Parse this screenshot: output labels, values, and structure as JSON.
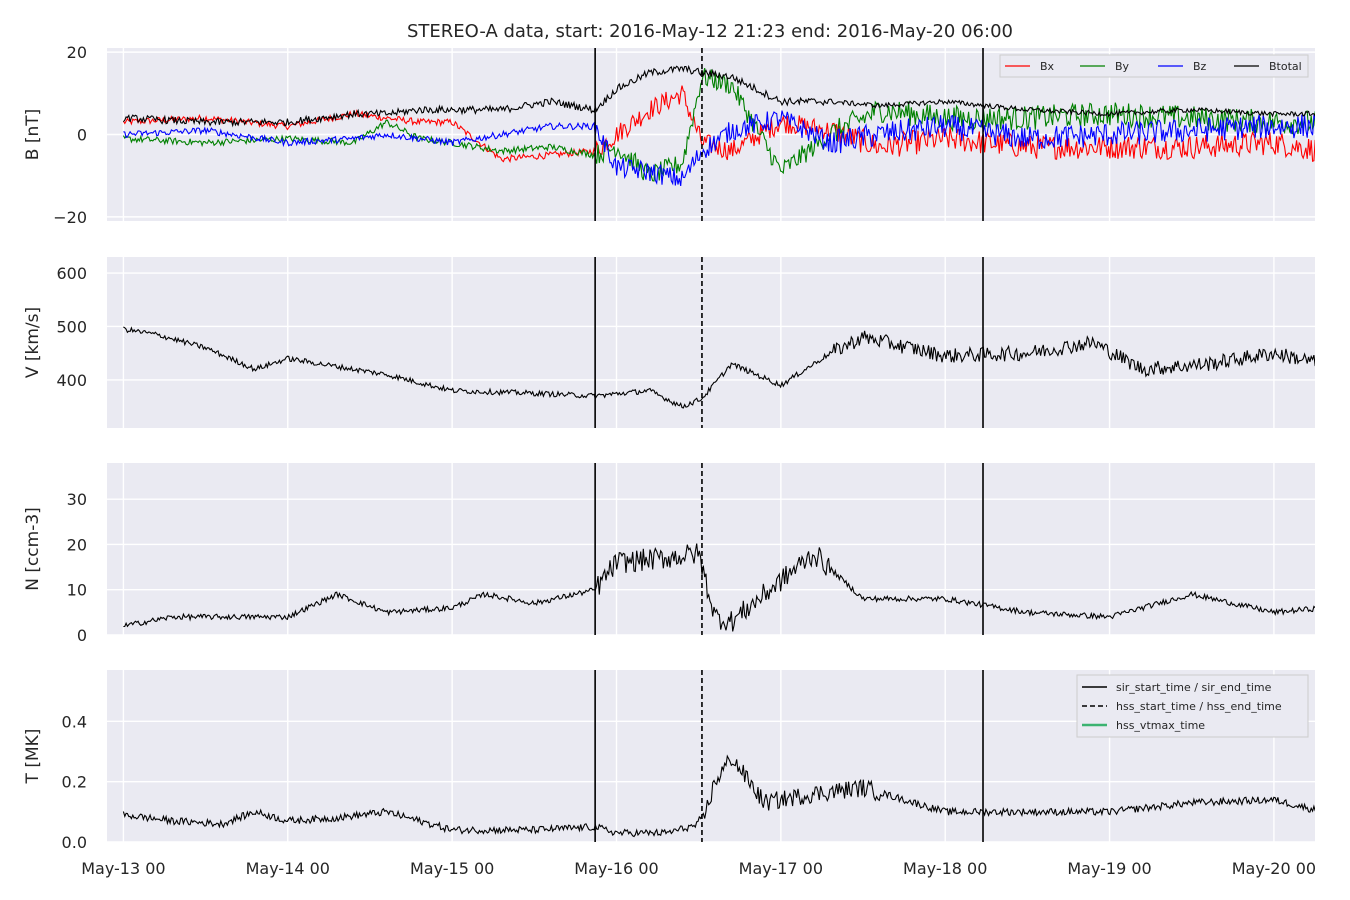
{
  "figure_title": "STEREO-A data, start: 2016-May-12 21:23  end: 2016-May-20 06:00",
  "colors": {
    "bx": "#ff0000",
    "by": "#008000",
    "bz": "#0000ff",
    "btotal": "#000000",
    "series": "#000000",
    "vtmax": "#3cb371",
    "background": "#eaeaf2"
  },
  "x_tick_labels": [
    "May-13 00",
    "May-14 00",
    "May-15 00",
    "May-16 00",
    "May-17 00",
    "May-18 00",
    "May-19 00",
    "May-20 00"
  ],
  "event_lines": [
    {
      "type": "sir_start_time",
      "day": 2.87,
      "style": "solid"
    },
    {
      "type": "hss_start_time",
      "day": 3.52,
      "style": "dashed"
    },
    {
      "type": "sir_end_time",
      "day": 5.23,
      "style": "solid"
    }
  ],
  "legend_b": [
    "Bx",
    "By",
    "Bz",
    "Btotal"
  ],
  "legend_t": [
    "sir_start_time / sir_end_time",
    "hss_start_time / hss_end_time",
    "hss_vtmax_time"
  ],
  "chart_data": [
    {
      "type": "line",
      "ylabel": "B [nT]",
      "ylim": [
        -21,
        21
      ],
      "yticks": [
        -20,
        0,
        20
      ],
      "tick_labels": [
        "−20",
        "0",
        "20"
      ],
      "series": [
        {
          "name": "Bx",
          "x": [
            0.0,
            0.5,
            1.0,
            1.4,
            1.6,
            1.8,
            2.0,
            2.3,
            2.6,
            2.87,
            3.0,
            3.2,
            3.4,
            3.52,
            3.7,
            4.0,
            4.3,
            4.6,
            5.0,
            5.5,
            6.0,
            6.5,
            7.0,
            7.3
          ],
          "y": [
            3,
            4,
            2,
            5,
            4,
            3,
            3,
            -6,
            -5,
            -4,
            0,
            6,
            10,
            -2,
            -4,
            3,
            1,
            -3,
            -1,
            -3,
            -3,
            -3,
            -2,
            -4
          ]
        },
        {
          "name": "By",
          "x": [
            0.0,
            0.5,
            1.0,
            1.4,
            1.6,
            1.8,
            2.0,
            2.3,
            2.6,
            2.87,
            3.0,
            3.2,
            3.4,
            3.52,
            3.7,
            4.0,
            4.3,
            4.6,
            5.0,
            5.5,
            6.0,
            6.5,
            7.0,
            7.3
          ],
          "y": [
            -1,
            -2,
            -1,
            -2,
            3,
            -1,
            -2,
            -4,
            -3,
            -5,
            -3,
            -10,
            -7,
            14,
            12,
            -9,
            0,
            6,
            4,
            4,
            5,
            4,
            3,
            3
          ]
        },
        {
          "name": "Bz",
          "x": [
            0.0,
            0.5,
            1.0,
            1.4,
            1.6,
            1.8,
            2.0,
            2.3,
            2.6,
            2.87,
            3.0,
            3.2,
            3.4,
            3.52,
            3.7,
            4.0,
            4.3,
            4.6,
            5.0,
            5.5,
            6.0,
            6.5,
            7.0,
            7.3
          ],
          "y": [
            0,
            1,
            -2,
            -1,
            0,
            -1,
            -2,
            0,
            2,
            2,
            -8,
            -9,
            -11,
            -4,
            1,
            4,
            -2,
            0,
            2,
            -1,
            0,
            1,
            2,
            2
          ]
        },
        {
          "name": "Btotal",
          "x": [
            0.0,
            0.5,
            1.0,
            1.4,
            1.6,
            1.8,
            2.0,
            2.3,
            2.6,
            2.87,
            3.0,
            3.2,
            3.4,
            3.52,
            3.7,
            4.0,
            4.3,
            4.6,
            5.0,
            5.5,
            6.0,
            6.5,
            7.0,
            7.3
          ],
          "y": [
            4,
            3,
            3,
            5,
            5,
            6,
            6,
            6,
            8,
            6,
            11,
            15,
            16,
            15,
            14,
            8,
            8,
            7,
            8,
            6,
            5,
            6,
            5,
            5
          ]
        }
      ]
    },
    {
      "type": "line",
      "ylabel": "V [km/s]",
      "ylim": [
        310,
        630
      ],
      "yticks": [
        400,
        500,
        600
      ],
      "tick_labels": [
        "400",
        "500",
        "600"
      ],
      "series": [
        {
          "x": [
            0.0,
            0.2,
            0.5,
            0.8,
            1.0,
            1.3,
            1.6,
            2.0,
            2.5,
            2.87,
            3.2,
            3.4,
            3.52,
            3.7,
            4.0,
            4.3,
            4.5,
            5.0,
            5.5,
            5.9,
            6.2,
            6.6,
            7.0,
            7.3
          ],
          "y": [
            495,
            485,
            460,
            420,
            440,
            425,
            410,
            380,
            375,
            370,
            380,
            350,
            365,
            430,
            390,
            450,
            480,
            445,
            450,
            470,
            420,
            430,
            450,
            430
          ]
        }
      ]
    },
    {
      "type": "line",
      "ylabel": "N [ccm-3]",
      "ylim": [
        0,
        38
      ],
      "yticks": [
        0,
        10,
        20,
        30
      ],
      "tick_labels": [
        "0",
        "10",
        "20",
        "30"
      ],
      "series": [
        {
          "x": [
            0.0,
            0.3,
            0.6,
            1.0,
            1.3,
            1.6,
            2.0,
            2.2,
            2.5,
            2.87,
            3.0,
            3.3,
            3.5,
            3.6,
            3.7,
            4.0,
            4.2,
            4.5,
            5.0,
            5.5,
            6.0,
            6.5,
            7.0,
            7.3
          ],
          "y": [
            2,
            4,
            4,
            4,
            9,
            5,
            6,
            9,
            7,
            10,
            16,
            17,
            18,
            4,
            3,
            12,
            18,
            8,
            8,
            5,
            4,
            9,
            5,
            6
          ]
        }
      ]
    },
    {
      "type": "line",
      "ylabel": "T [MK]",
      "ylim": [
        0.0,
        0.57
      ],
      "yticks": [
        0.0,
        0.2,
        0.4
      ],
      "tick_labels": [
        "0.0",
        "0.2",
        "0.4"
      ],
      "series": [
        {
          "x": [
            0.0,
            0.3,
            0.6,
            0.8,
            1.0,
            1.3,
            1.6,
            2.0,
            2.5,
            2.87,
            3.0,
            3.3,
            3.52,
            3.6,
            3.7,
            3.9,
            4.2,
            4.5,
            5.0,
            5.5,
            6.0,
            6.5,
            7.0,
            7.3
          ],
          "y": [
            0.09,
            0.07,
            0.06,
            0.1,
            0.07,
            0.08,
            0.1,
            0.04,
            0.04,
            0.05,
            0.03,
            0.03,
            0.06,
            0.2,
            0.28,
            0.13,
            0.16,
            0.18,
            0.1,
            0.1,
            0.1,
            0.13,
            0.14,
            0.1
          ]
        }
      ]
    }
  ]
}
